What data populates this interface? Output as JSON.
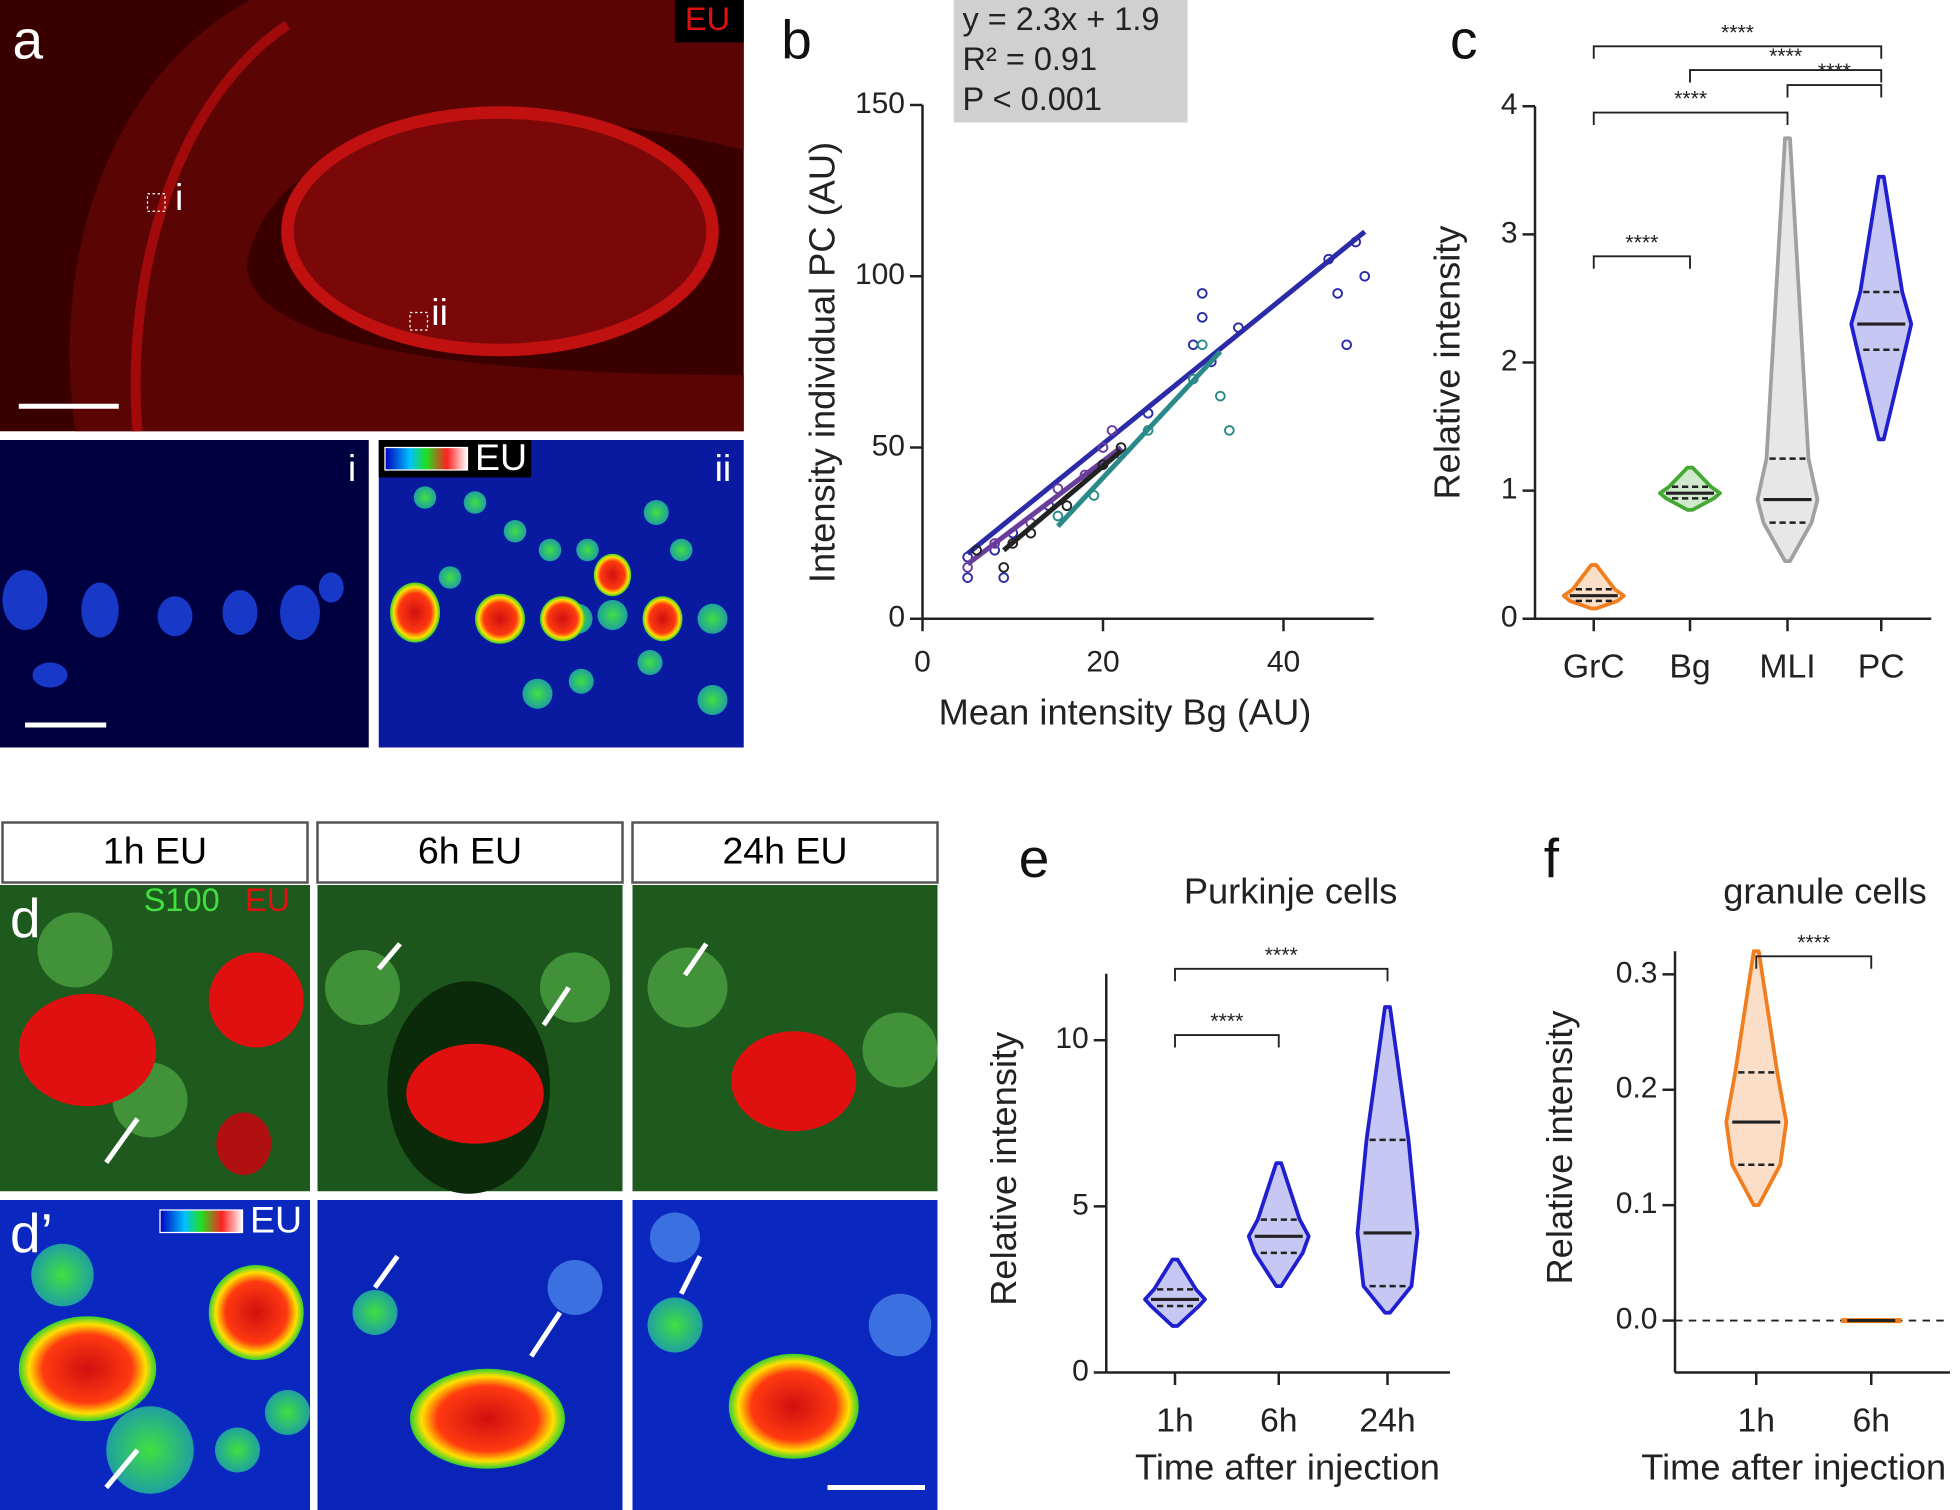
{
  "panels": {
    "a": "a",
    "a_channel": "EU",
    "a_box_i": "i",
    "a_box_ii": "ii",
    "sub_i": "i",
    "sub_ii": "ii",
    "colorbar_top": "EU",
    "d_label": "d",
    "d_s100": "S100",
    "d_eu": "EU",
    "dp_label": "d’",
    "colorbar_bottom": "EU",
    "col_1": "1h EU",
    "col_2": "6h EU",
    "col_3": "24h EU"
  },
  "chart_data": [
    {
      "type": "scatter",
      "label": "b",
      "xlabel": "Mean intensity Bg (AU)",
      "ylabel": "Intensity individual PC (AU)",
      "annotation": [
        "y = 2.3x + 1.9",
        "R² = 0.91",
        "P < 0.001"
      ],
      "xlim": [
        0,
        50
      ],
      "xticks": [
        0,
        20,
        40
      ],
      "ylim": [
        0,
        150
      ],
      "yticks": [
        0,
        50,
        100,
        150
      ],
      "series": [
        {
          "color": "#2b2ba8",
          "x": [
            5,
            5,
            8,
            9,
            10,
            14,
            20,
            25,
            30,
            31,
            31,
            32,
            35,
            45,
            46,
            47,
            48,
            49
          ],
          "values": [
            12,
            18,
            20,
            12,
            25,
            33,
            45,
            60,
            80,
            95,
            88,
            75,
            85,
            105,
            95,
            80,
            110,
            100
          ],
          "fit": [
            5,
            19,
            49,
            113
          ]
        },
        {
          "color": "#6a3d9a",
          "x": [
            5,
            8,
            12,
            15,
            18,
            20,
            21,
            22
          ],
          "values": [
            15,
            22,
            28,
            38,
            42,
            50,
            55,
            48
          ],
          "fit": [
            5,
            16,
            22,
            50
          ]
        },
        {
          "color": "#222222",
          "x": [
            6,
            9,
            10,
            12,
            16,
            20,
            22
          ],
          "values": [
            20,
            15,
            22,
            25,
            33,
            45,
            50
          ],
          "fit": [
            9,
            20,
            22,
            49
          ]
        },
        {
          "color": "#2a8a8a",
          "x": [
            15,
            19,
            25,
            30,
            31,
            33,
            34
          ],
          "values": [
            30,
            36,
            55,
            70,
            80,
            65,
            55
          ],
          "fit": [
            15,
            27,
            33,
            78
          ]
        }
      ]
    },
    {
      "type": "violin",
      "label": "c",
      "ylabel": "Relative intensity",
      "categories": [
        "GrC",
        "Bg",
        "MLI",
        "PC"
      ],
      "ylim": [
        0,
        4
      ],
      "yticks": [
        0,
        1,
        2,
        3,
        4
      ],
      "stats": [
        {
          "min": 0.08,
          "q1": 0.14,
          "median": 0.18,
          "q3": 0.23,
          "max": 0.42,
          "color": "#f07d1e"
        },
        {
          "min": 0.85,
          "q1": 0.94,
          "median": 0.98,
          "q3": 1.03,
          "max": 1.18,
          "color": "#44a832"
        },
        {
          "min": 0.45,
          "q1": 0.75,
          "median": 0.93,
          "q3": 1.25,
          "max": 3.75,
          "color": "#a0a0a0"
        },
        {
          "min": 1.4,
          "q1": 2.1,
          "median": 2.3,
          "q3": 2.55,
          "max": 3.45,
          "color": "#1f1fd0"
        }
      ],
      "brackets": [
        {
          "from": 0,
          "to": 3,
          "label": "****"
        },
        {
          "from": 1,
          "to": 3,
          "label": "****"
        },
        {
          "from": 2,
          "to": 3,
          "label": "****"
        },
        {
          "from": 0,
          "to": 2,
          "label": "****"
        },
        {
          "from": 0,
          "to": 1,
          "label": "****"
        }
      ]
    },
    {
      "type": "violin",
      "label": "e",
      "title": "Purkinje cells",
      "ylabel": "Relative intensity",
      "xlabel": "Time after injection",
      "categories": [
        "1h",
        "6h",
        "24h"
      ],
      "ylim": [
        0,
        12
      ],
      "yticks": [
        0,
        5,
        10
      ],
      "stats": [
        {
          "min": 1.4,
          "q1": 2.0,
          "median": 2.2,
          "q3": 2.5,
          "max": 3.4,
          "color": "#1f1fd0"
        },
        {
          "min": 2.6,
          "q1": 3.6,
          "median": 4.1,
          "q3": 4.6,
          "max": 6.3,
          "color": "#1f1fd0"
        },
        {
          "min": 1.8,
          "q1": 2.6,
          "median": 4.2,
          "q3": 7.0,
          "max": 11.0,
          "color": "#1f1fd0"
        }
      ],
      "brackets": [
        {
          "from": 0,
          "to": 1,
          "label": "****"
        },
        {
          "from": 0,
          "to": 2,
          "label": "****"
        }
      ]
    },
    {
      "type": "violin",
      "label": "f",
      "title": "granule cells",
      "ylabel": "Relative intensity",
      "xlabel": "Time after injection",
      "categories": [
        "1h",
        "6h"
      ],
      "ylim": [
        -0.045,
        0.32
      ],
      "yticks": [
        {
          "value": 0,
          "label": "0.0"
        },
        0.1,
        0.2,
        0.3
      ],
      "zero_line": "dashed",
      "stats": [
        {
          "min": 0.1,
          "q1": 0.135,
          "median": 0.172,
          "q3": 0.215,
          "max": 0.32,
          "color": "#f07d1e"
        },
        {
          "min": 0,
          "q1": 0,
          "median": 0,
          "q3": 0,
          "max": 0,
          "color": "#f07d1e"
        }
      ],
      "brackets": [
        {
          "from": 0,
          "to": 1,
          "label": "****"
        }
      ]
    }
  ]
}
